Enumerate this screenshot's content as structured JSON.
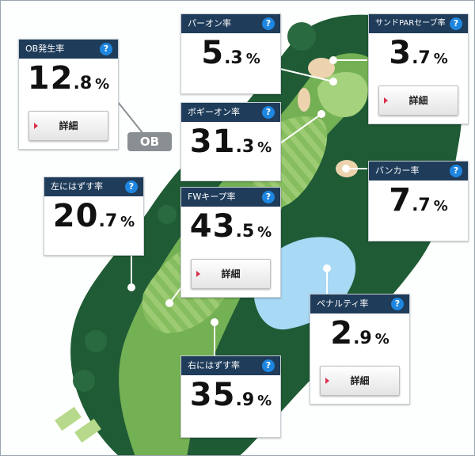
{
  "colors": {
    "header": "#1f3c5a",
    "help": "#1e86e0",
    "arrow": "#d9304a",
    "rough": "#1f5b35",
    "fairway": "#76b155"
  },
  "icons": {
    "help": "question-circle-icon",
    "detail": "red-triangle-arrow-icon"
  },
  "ob_badge": "OB",
  "cards": {
    "ob": {
      "title": "OB発生率",
      "help": "?",
      "int": "12",
      "dec": ".8",
      "pct": "%",
      "button": "詳細"
    },
    "green_on": {
      "title": "パーオン率",
      "help": "?",
      "int": "5",
      "dec": ".3",
      "pct": "%"
    },
    "sand_save": {
      "title": "サンドPARセーブ率",
      "help": "?",
      "int": "3",
      "dec": ".7",
      "pct": "%",
      "button": "詳細"
    },
    "bogey_on": {
      "title": "ボギーオン率",
      "help": "?",
      "int": "31",
      "dec": ".3",
      "pct": "%"
    },
    "left_miss": {
      "title": "左にはずす率",
      "help": "?",
      "int": "20",
      "dec": ".7",
      "pct": "%"
    },
    "fw_keep": {
      "title": "FWキープ率",
      "help": "?",
      "int": "43",
      "dec": ".5",
      "pct": "%",
      "button": "詳細"
    },
    "bunker": {
      "title": "バンカー率",
      "help": "?",
      "int": "7",
      "dec": ".7",
      "pct": "%"
    },
    "penalty": {
      "title": "ペナルティ率",
      "help": "?",
      "int": "2",
      "dec": ".9",
      "pct": "%",
      "button": "詳細"
    },
    "right_miss": {
      "title": "右にはずす率",
      "help": "?",
      "int": "35",
      "dec": ".9",
      "pct": "%"
    }
  }
}
